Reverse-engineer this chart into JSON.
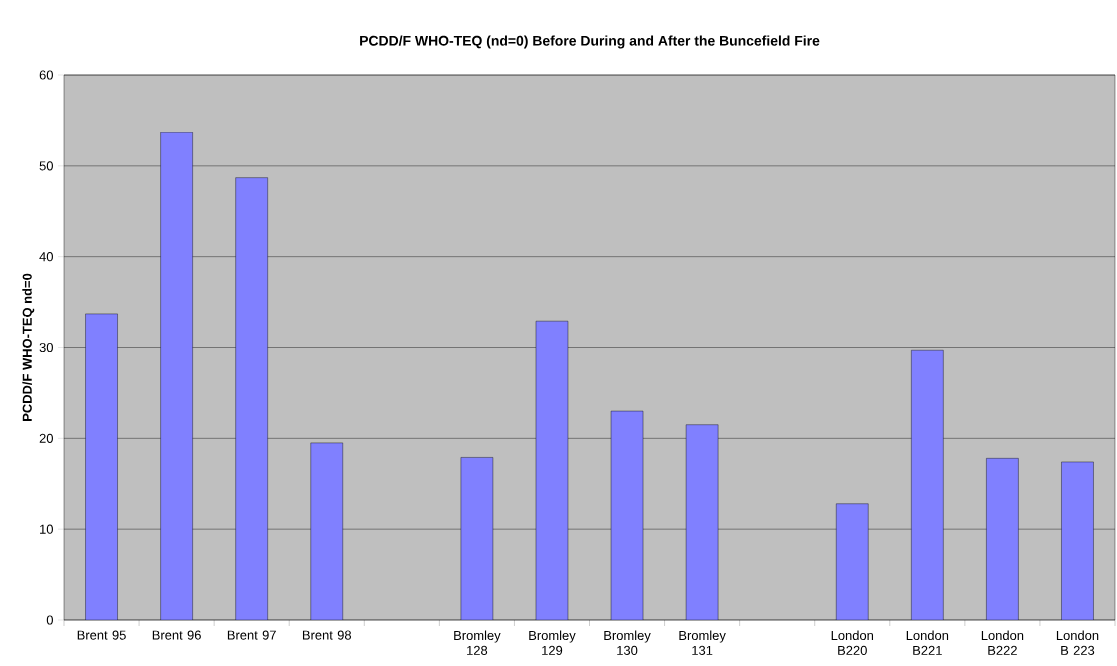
{
  "chart_data": {
    "type": "bar",
    "title": "PCDD/F WHO-TEQ (nd=0) Before During and After the Buncefield Fire",
    "ylabel": "PCDD/F WHO-TEQ nd=0",
    "categories": [
      "Brent 95",
      "Brent 96",
      "Brent 97",
      "Brent 98",
      null,
      "Bromley 128",
      "Bromley 129",
      "Bromley 130",
      "Bromley 131",
      null,
      "London B220",
      "London B221",
      "London B222",
      "London B 223"
    ],
    "values": [
      33.7,
      53.7,
      48.7,
      19.5,
      null,
      17.9,
      32.9,
      23.0,
      21.5,
      null,
      12.8,
      29.7,
      17.8,
      17.4
    ],
    "color": "#8080ff",
    "ylim": [
      0,
      60
    ],
    "yticks": [
      0,
      10,
      20,
      30,
      40,
      50,
      60
    ],
    "grid": "y"
  }
}
